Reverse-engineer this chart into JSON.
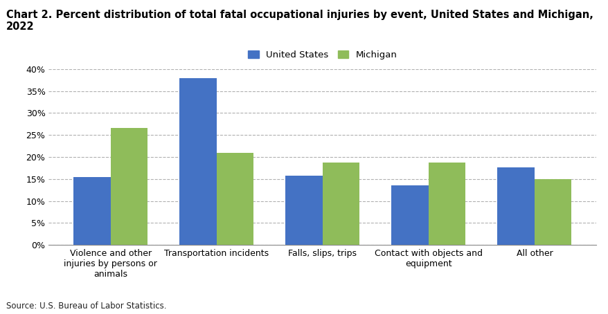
{
  "title": "Chart 2. Percent distribution of total fatal occupational injuries by event, United States and Michigan, 2022",
  "categories": [
    "Violence and other\ninjuries by persons or\nanimals",
    "Transportation incidents",
    "Falls, slips, trips",
    "Contact with objects and\nequipment",
    "All other"
  ],
  "us_values": [
    15.5,
    38.0,
    15.8,
    13.5,
    17.6
  ],
  "mi_values": [
    26.6,
    21.0,
    18.7,
    18.7,
    15.0
  ],
  "us_color": "#4472C4",
  "mi_color": "#8FBC5A",
  "us_label": "United States",
  "mi_label": "Michigan",
  "ylim": [
    0,
    40
  ],
  "yticks": [
    0,
    5,
    10,
    15,
    20,
    25,
    30,
    35,
    40
  ],
  "ytick_labels": [
    "0%",
    "5%",
    "10%",
    "15%",
    "20%",
    "25%",
    "30%",
    "35%",
    "40%"
  ],
  "source_text": "Source: U.S. Bureau of Labor Statistics.",
  "background_color": "#ffffff",
  "title_fontsize": 10.5,
  "tick_fontsize": 9,
  "legend_fontsize": 9.5,
  "source_fontsize": 8.5,
  "bar_width": 0.35
}
